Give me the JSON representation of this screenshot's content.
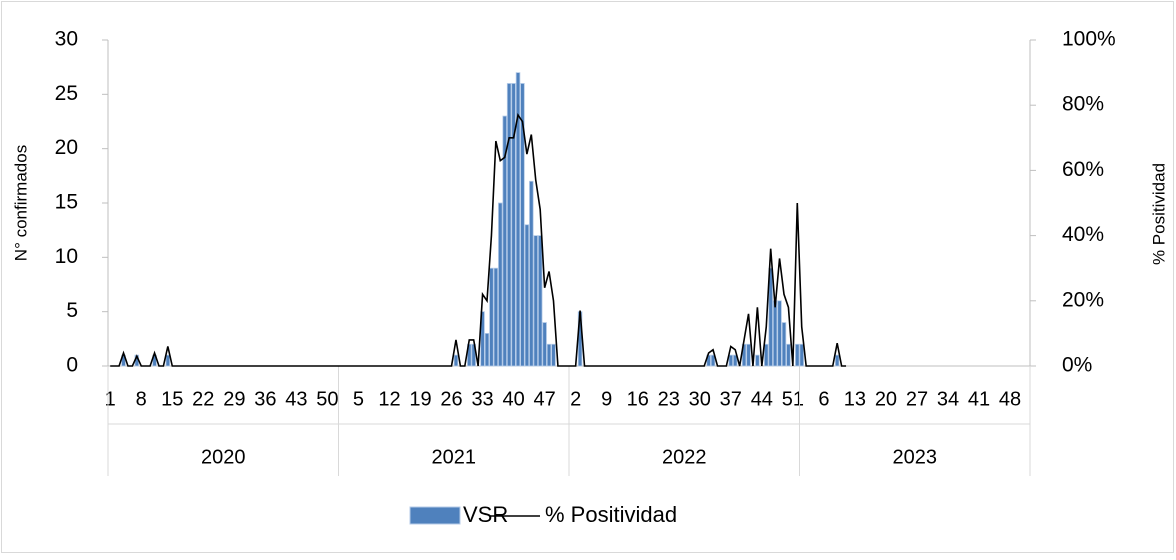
{
  "chart_data": {
    "type": "bar",
    "y_label": "N° confirmados",
    "y2_label": "% Positividad",
    "categories": [
      "1",
      null,
      null,
      null,
      null,
      null,
      null,
      "8",
      null,
      null,
      null,
      null,
      null,
      null,
      "15",
      null,
      null,
      null,
      null,
      null,
      null,
      "22",
      null,
      null,
      null,
      null,
      null,
      null,
      "29",
      null,
      null,
      null,
      null,
      null,
      null,
      "36",
      null,
      null,
      null,
      null,
      null,
      null,
      "43",
      null,
      null,
      null,
      null,
      null,
      null,
      "50",
      null,
      null,
      null,
      null,
      null,
      null,
      "5",
      null,
      null,
      null,
      null,
      null,
      null,
      "12",
      null,
      null,
      null,
      null,
      null,
      null,
      "19",
      null,
      null,
      null,
      null,
      null,
      null,
      "26",
      null,
      null,
      null,
      null,
      null,
      null,
      "33",
      null,
      null,
      null,
      null,
      null,
      null,
      "40",
      null,
      null,
      null,
      null,
      null,
      null,
      "47",
      null,
      null,
      null,
      null,
      null,
      null,
      "2",
      null,
      null,
      null,
      null,
      null,
      null,
      "9",
      null,
      null,
      null,
      null,
      null,
      null,
      "16",
      null,
      null,
      null,
      null,
      null,
      null,
      "23",
      null,
      null,
      null,
      null,
      null,
      null,
      "30",
      null,
      null,
      null,
      null,
      null,
      null,
      "37",
      null,
      null,
      null,
      null,
      null,
      null,
      "44",
      null,
      null,
      null,
      null,
      null,
      null,
      "51",
      null,
      null,
      null,
      null,
      null,
      null,
      "6",
      null,
      null,
      null,
      null,
      null,
      null,
      "13",
      null,
      null,
      null,
      null,
      null,
      null,
      "20",
      null,
      null,
      null,
      null,
      null,
      null,
      "27",
      null,
      null,
      null,
      null,
      null,
      null,
      "34",
      null,
      null,
      null,
      null,
      null,
      null,
      "41",
      null,
      null,
      null,
      null,
      null,
      null,
      "48",
      null,
      null,
      null,
      null
    ],
    "groups": [
      "2020",
      "2021",
      "2022",
      "2023"
    ],
    "series": [
      {
        "name": "VSR",
        "type": "bar",
        "color": "#4f81bd",
        "values": [
          0,
          0,
          0,
          1,
          0,
          0,
          1,
          0,
          0,
          0,
          1,
          0,
          0,
          1,
          0,
          0,
          0,
          0,
          0,
          0,
          0,
          0,
          0,
          0,
          0,
          0,
          0,
          0,
          0,
          0,
          0,
          0,
          0,
          0,
          0,
          0,
          0,
          0,
          0,
          0,
          0,
          0,
          0,
          0,
          0,
          0,
          0,
          0,
          0,
          0,
          0,
          0,
          0,
          0,
          0,
          0,
          0,
          0,
          0,
          0,
          0,
          0,
          0,
          0,
          0,
          0,
          0,
          0,
          0,
          0,
          0,
          0,
          0,
          0,
          0,
          0,
          0,
          0,
          1,
          0,
          0,
          2,
          2,
          0,
          5,
          3,
          9,
          9,
          15,
          23,
          26,
          26,
          27,
          26,
          13,
          17,
          12,
          12,
          4,
          2,
          2,
          0,
          0,
          0,
          0,
          0,
          5,
          0,
          0,
          0,
          0,
          0,
          0,
          0,
          0,
          0,
          0,
          0,
          0,
          0,
          0,
          0,
          0,
          0,
          0,
          0,
          0,
          0,
          0,
          0,
          0,
          0,
          0,
          0,
          0,
          1,
          1,
          0,
          0,
          0,
          1,
          1,
          0,
          2,
          2,
          0,
          1,
          0,
          2,
          9,
          6,
          6,
          4,
          2,
          0,
          2,
          2,
          0,
          0,
          0,
          0,
          0,
          0,
          0,
          1,
          0,
          0,
          null,
          null,
          null,
          null,
          null,
          null,
          null,
          null,
          null,
          null,
          null,
          null,
          null,
          null,
          null,
          null,
          null,
          null,
          null,
          null,
          null,
          null,
          null,
          null,
          null,
          null,
          null,
          null,
          null,
          null,
          null,
          null,
          null,
          null,
          null,
          null,
          null,
          null,
          null,
          null,
          null
        ]
      },
      {
        "name": "% Positividad",
        "type": "line",
        "axis": "y2",
        "color": "#000000",
        "values": [
          0,
          0,
          0,
          4,
          0,
          0,
          3,
          0,
          0,
          0,
          4,
          0,
          0,
          6,
          0,
          0,
          0,
          0,
          0,
          0,
          0,
          0,
          0,
          0,
          0,
          0,
          0,
          0,
          0,
          0,
          0,
          0,
          0,
          0,
          0,
          0,
          0,
          0,
          0,
          0,
          0,
          0,
          0,
          0,
          0,
          0,
          0,
          0,
          0,
          0,
          0,
          0,
          0,
          0,
          0,
          0,
          0,
          0,
          0,
          0,
          0,
          0,
          0,
          0,
          0,
          0,
          0,
          0,
          0,
          0,
          0,
          0,
          0,
          0,
          0,
          0,
          0,
          0,
          8,
          0,
          0,
          8,
          8,
          0,
          22,
          20,
          40,
          69,
          63,
          64,
          70,
          70,
          77,
          75,
          65,
          71,
          57,
          48,
          24,
          29,
          20,
          0,
          0,
          0,
          0,
          0,
          17,
          0,
          0,
          0,
          0,
          0,
          0,
          0,
          0,
          0,
          0,
          0,
          0,
          0,
          0,
          0,
          0,
          0,
          0,
          0,
          0,
          0,
          0,
          0,
          0,
          0,
          0,
          0,
          0,
          4,
          5,
          0,
          0,
          0,
          6,
          5,
          0,
          8,
          16,
          0,
          18,
          0,
          12,
          36,
          18,
          33,
          22,
          18,
          0,
          50,
          12,
          0,
          0,
          0,
          0,
          0,
          0,
          0,
          7,
          0,
          0,
          null,
          null,
          null,
          null,
          null,
          null,
          null,
          null,
          null,
          null,
          null,
          null,
          null,
          null,
          null,
          null,
          null,
          null,
          null,
          null,
          null,
          null,
          null,
          null,
          null,
          null,
          null,
          null,
          null,
          null,
          null,
          null,
          null,
          null,
          null,
          null,
          null,
          null,
          null,
          null,
          null
        ]
      }
    ],
    "ylim": [
      0,
      30
    ],
    "yticks": [
      0,
      5,
      10,
      15,
      20,
      25,
      30
    ],
    "y2lim": [
      0,
      100
    ],
    "y2ticks": [
      {
        "value": 0,
        "label": "0%"
      },
      {
        "value": 20,
        "label": "20%"
      },
      {
        "value": 40,
        "label": "40%"
      },
      {
        "value": 60,
        "label": "60%"
      },
      {
        "value": 80,
        "label": "80%"
      },
      {
        "value": 100,
        "label": "100%"
      }
    ],
    "legend": "bottom"
  }
}
